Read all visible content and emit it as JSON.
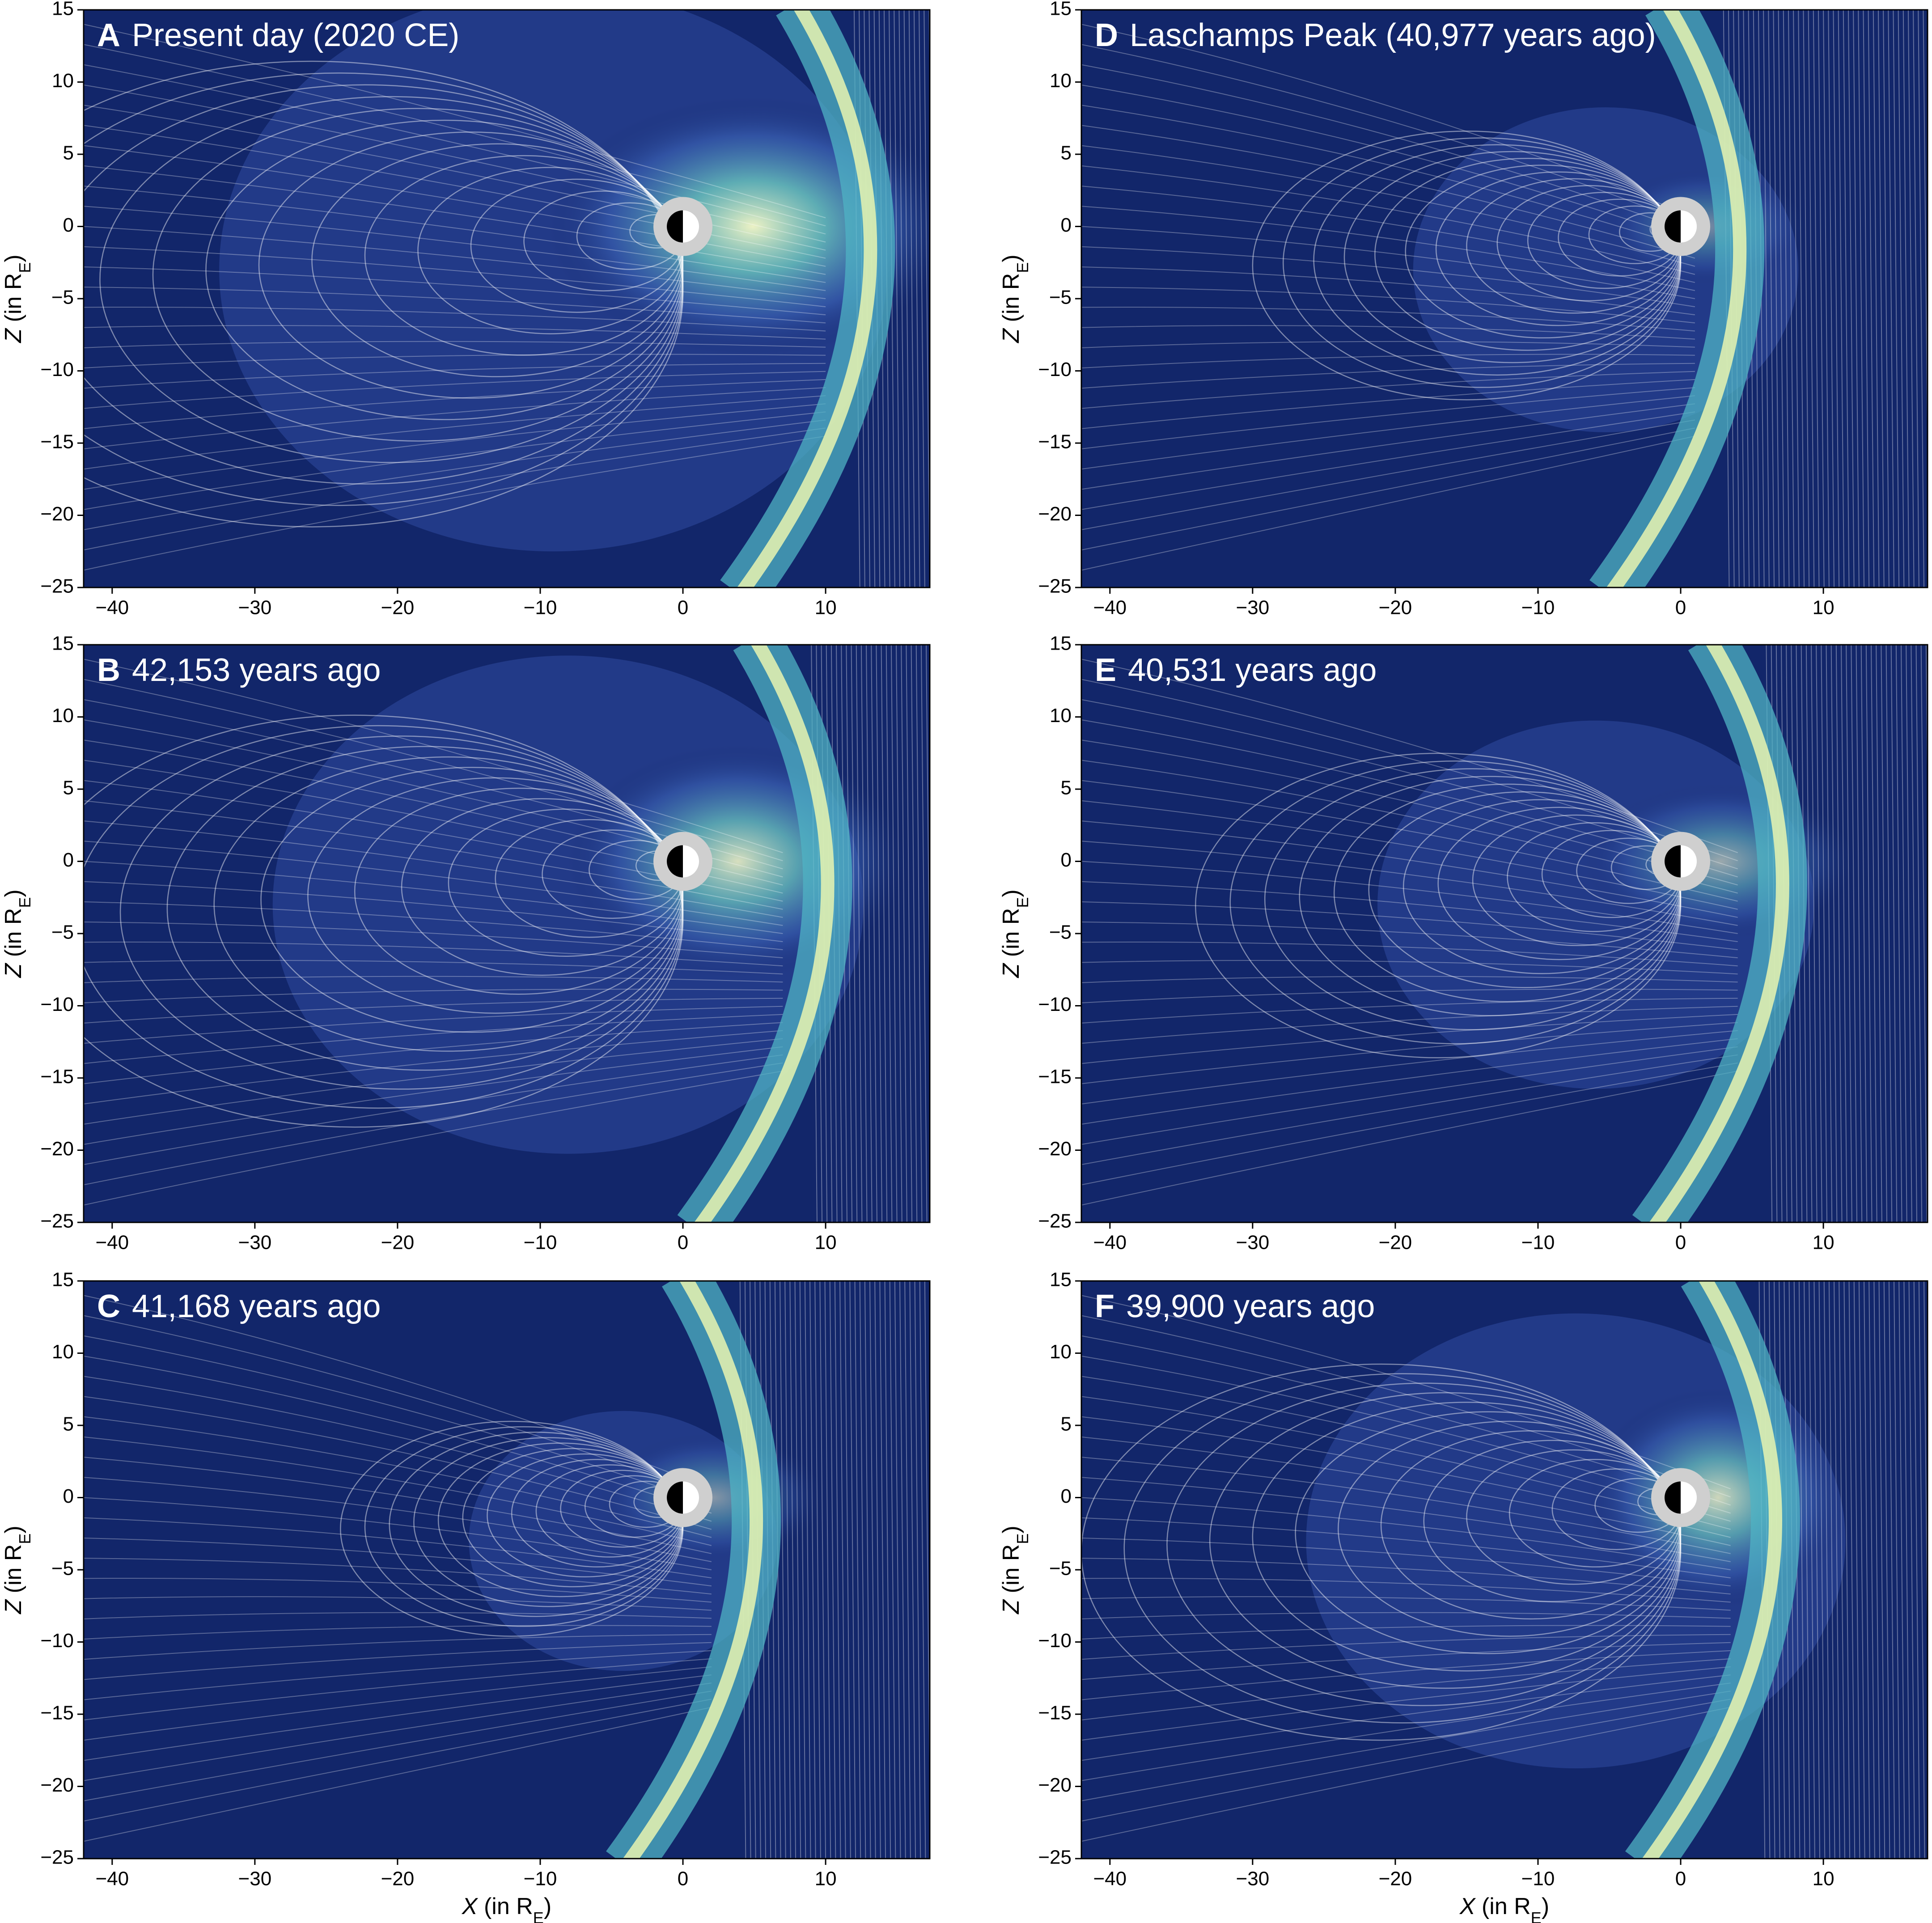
{
  "chart_data": [
    {
      "type": "field",
      "letter": "A",
      "title": "Present day (2020 CE)",
      "xlim": [
        -42,
        17.3
      ],
      "ylim": [
        -25,
        15
      ],
      "xticks": [
        {
          "value": -40,
          "label": "−40"
        },
        {
          "value": -30,
          "label": "−30"
        },
        {
          "value": -20,
          "label": "−20"
        },
        {
          "value": -10,
          "label": "−10"
        },
        0,
        10
      ],
      "yticks": [
        15,
        10,
        5,
        0,
        {
          "value": -5,
          "label": "−5"
        },
        {
          "value": -10,
          "label": "−10"
        },
        {
          "value": -15,
          "label": "−15"
        },
        {
          "value": -20,
          "label": "−20"
        },
        {
          "value": -25,
          "label": "−25"
        }
      ],
      "ylabel": [
        "Z",
        " (in R",
        "E",
        ")"
      ]
    },
    {
      "type": "field",
      "letter": "B",
      "title": "42,153 years ago",
      "xlim": [
        -42,
        17.3
      ],
      "ylim": [
        -25,
        15
      ],
      "xticks": [
        {
          "value": -40,
          "label": "−40"
        },
        {
          "value": -30,
          "label": "−30"
        },
        {
          "value": -20,
          "label": "−20"
        },
        {
          "value": -10,
          "label": "−10"
        },
        0,
        10
      ],
      "yticks": [
        15,
        10,
        5,
        0,
        {
          "value": -5,
          "label": "−5"
        },
        {
          "value": -10,
          "label": "−10"
        },
        {
          "value": -15,
          "label": "−15"
        },
        {
          "value": -20,
          "label": "−20"
        },
        {
          "value": -25,
          "label": "−25"
        }
      ],
      "ylabel": [
        "Z",
        " (in R",
        "E",
        ")"
      ]
    },
    {
      "type": "field",
      "letter": "C",
      "title": "41,168 years ago",
      "xlim": [
        -42,
        17.3
      ],
      "ylim": [
        -25,
        15
      ],
      "xticks": [
        {
          "value": -40,
          "label": "−40"
        },
        {
          "value": -30,
          "label": "−30"
        },
        {
          "value": -20,
          "label": "−20"
        },
        {
          "value": -10,
          "label": "−10"
        },
        0,
        10
      ],
      "yticks": [
        15,
        10,
        5,
        0,
        {
          "value": -5,
          "label": "−5"
        },
        {
          "value": -10,
          "label": "−10"
        },
        {
          "value": -15,
          "label": "−15"
        },
        {
          "value": -20,
          "label": "−20"
        },
        {
          "value": -25,
          "label": "−25"
        }
      ],
      "ylabel": [
        "Z",
        " (in R",
        "E",
        ")"
      ],
      "xlabel": [
        "X",
        " (in R",
        "E",
        ")"
      ]
    },
    {
      "type": "field",
      "letter": "D",
      "title": "Laschamps Peak (40,977 years ago)",
      "xlim": [
        -42,
        17.3
      ],
      "ylim": [
        -25,
        15
      ],
      "xticks": [
        {
          "value": -40,
          "label": "−40"
        },
        {
          "value": -30,
          "label": "−30"
        },
        {
          "value": -20,
          "label": "−20"
        },
        {
          "value": -10,
          "label": "−10"
        },
        0,
        10
      ],
      "yticks": [
        15,
        10,
        5,
        0,
        {
          "value": -5,
          "label": "−5"
        },
        {
          "value": -10,
          "label": "−10"
        },
        {
          "value": -15,
          "label": "−15"
        },
        {
          "value": -20,
          "label": "−20"
        },
        {
          "value": -25,
          "label": "−25"
        }
      ],
      "ylabel": [
        "Z",
        " (in R",
        "E",
        ")"
      ]
    },
    {
      "type": "field",
      "letter": "E",
      "title": "40,531 years ago",
      "xlim": [
        -42,
        17.3
      ],
      "ylim": [
        -25,
        15
      ],
      "xticks": [
        {
          "value": -40,
          "label": "−40"
        },
        {
          "value": -30,
          "label": "−30"
        },
        {
          "value": -20,
          "label": "−20"
        },
        {
          "value": -10,
          "label": "−10"
        },
        0,
        10
      ],
      "yticks": [
        15,
        10,
        5,
        0,
        {
          "value": -5,
          "label": "−5"
        },
        {
          "value": -10,
          "label": "−10"
        },
        {
          "value": -15,
          "label": "−15"
        },
        {
          "value": -20,
          "label": "−20"
        },
        {
          "value": -25,
          "label": "−25"
        }
      ],
      "ylabel": [
        "Z",
        " (in R",
        "E",
        ")"
      ]
    },
    {
      "type": "field",
      "letter": "F",
      "title": "39,900 years ago",
      "xlim": [
        -42,
        17.3
      ],
      "ylim": [
        -25,
        15
      ],
      "xticks": [
        {
          "value": -40,
          "label": "−40"
        },
        {
          "value": -30,
          "label": "−30"
        },
        {
          "value": -20,
          "label": "−20"
        },
        {
          "value": -10,
          "label": "−10"
        },
        0,
        10
      ],
      "yticks": [
        15,
        10,
        5,
        0,
        {
          "value": -5,
          "label": "−5"
        },
        {
          "value": -10,
          "label": "−10"
        },
        {
          "value": -15,
          "label": "−15"
        },
        {
          "value": -20,
          "label": "−20"
        },
        {
          "value": -25,
          "label": "−25"
        }
      ],
      "ylabel": [
        "Z",
        " (in R",
        "E",
        ")"
      ],
      "xlabel": [
        "X",
        " (in R",
        "E",
        ")"
      ]
    }
  ]
}
